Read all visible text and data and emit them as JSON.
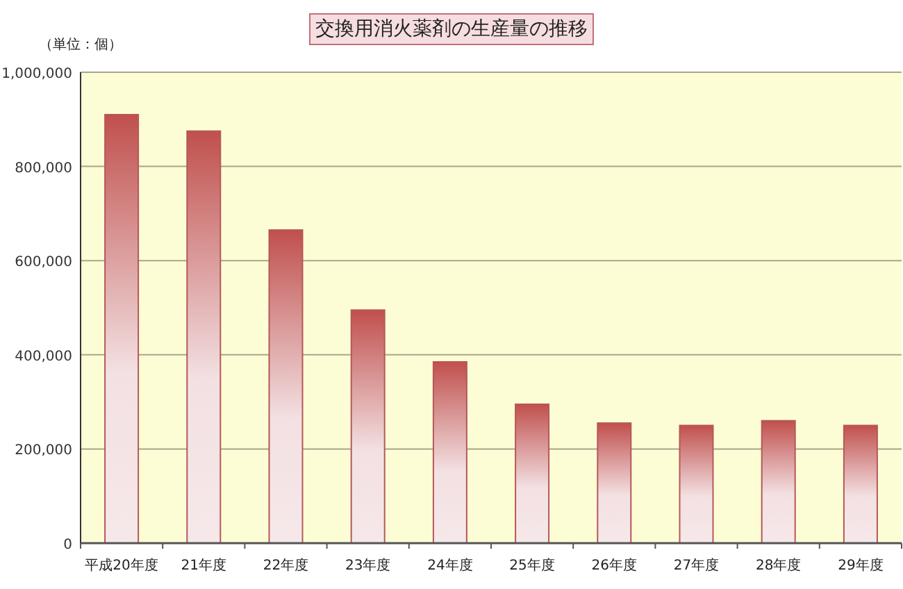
{
  "chart_data": {
    "type": "bar",
    "title": "交換用消火薬剤の生産量の推移",
    "annotations": [
      "（単位：個）"
    ],
    "categories": [
      "平成20年度",
      "21年度",
      "22年度",
      "23年度",
      "24年度",
      "25年度",
      "26年度",
      "27年度",
      "28年度",
      "29年度"
    ],
    "values": [
      910000,
      875000,
      665000,
      495000,
      385000,
      295000,
      255000,
      250000,
      260000,
      250000
    ],
    "color": "#c0504d",
    "ylim": [
      0,
      1000000
    ],
    "yticks": [
      {
        "value": 0,
        "label": "0"
      },
      {
        "value": 200000,
        "label": "200,000"
      },
      {
        "value": 400000,
        "label": "400,000"
      },
      {
        "value": 600000,
        "label": "600,000"
      },
      {
        "value": 800000,
        "label": "800,000"
      },
      {
        "value": 1000000,
        "label": "1,000,000"
      }
    ],
    "grid": "y"
  }
}
